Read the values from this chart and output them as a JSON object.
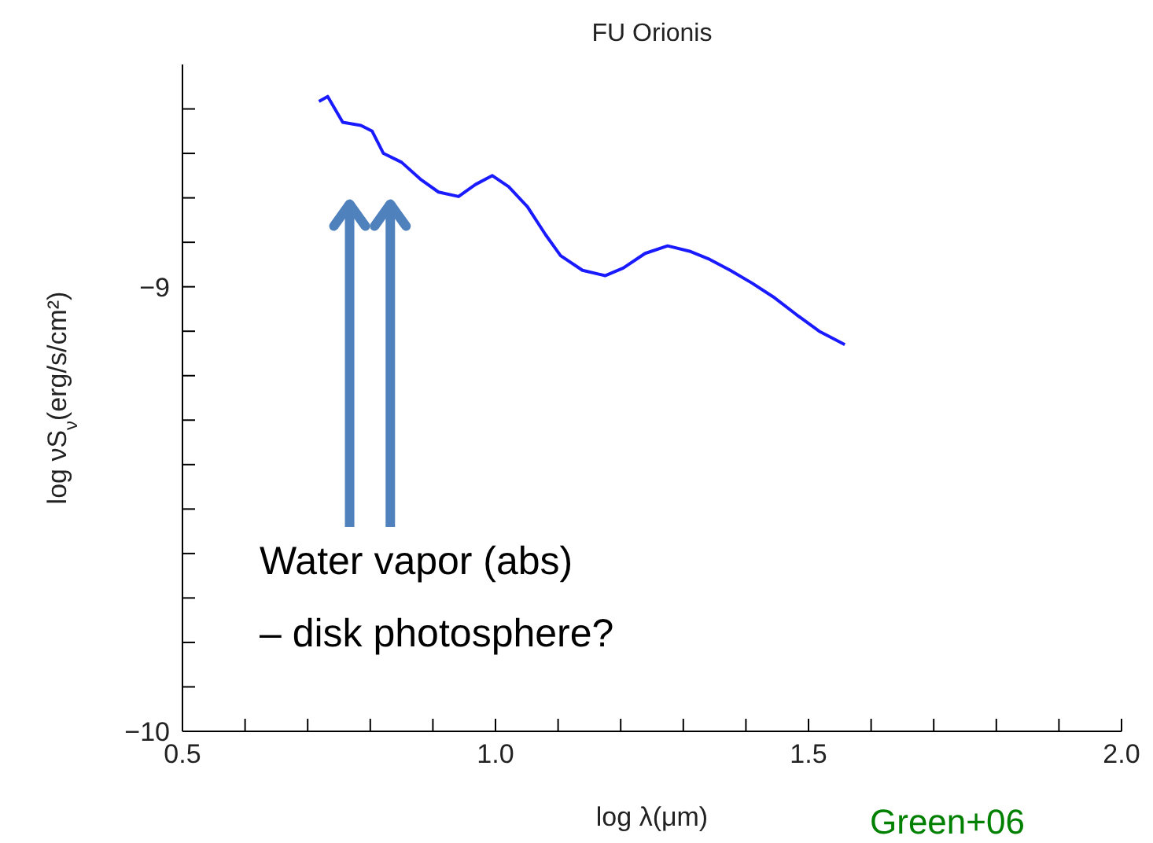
{
  "chart_data": {
    "type": "line",
    "title": "FU Orionis",
    "xlabel": "log λ(μm)",
    "ylabel": "log νS$_{ν}$(erg/s/cm²)",
    "annotations": [
      "Water vapor (abs)\n– disk photosphere?",
      "Green+06"
    ],
    "xlim": [
      0.5,
      2.0
    ],
    "ylim": [
      -10,
      -8.5
    ],
    "xticks": [
      {
        "value": 0.5,
        "label": "0.5"
      },
      {
        "value": 0.6,
        "label": null
      },
      {
        "value": 0.7,
        "label": null
      },
      {
        "value": 0.8,
        "label": null
      },
      {
        "value": 0.9,
        "label": null
      },
      {
        "value": 1.0,
        "label": "1.0"
      },
      {
        "value": 1.1,
        "label": null
      },
      {
        "value": 1.2,
        "label": null
      },
      {
        "value": 1.3,
        "label": null
      },
      {
        "value": 1.4,
        "label": null
      },
      {
        "value": 1.5,
        "label": "1.5"
      },
      {
        "value": 1.6,
        "label": null
      },
      {
        "value": 1.7,
        "label": null
      },
      {
        "value": 1.8,
        "label": null
      },
      {
        "value": 1.9,
        "label": null
      },
      {
        "value": 2.0,
        "label": "2.0"
      }
    ],
    "yticks": [
      -10,
      {
        "value": -9.9,
        "label": null
      },
      {
        "value": -9.8,
        "label": null
      },
      {
        "value": -9.7,
        "label": null
      },
      {
        "value": -9.6,
        "label": null
      },
      {
        "value": -9.5,
        "label": null
      },
      {
        "value": -9.4,
        "label": null
      },
      {
        "value": -9.3,
        "label": null
      },
      {
        "value": -9.2,
        "label": null
      },
      {
        "value": -9.1,
        "label": null
      },
      -9,
      {
        "value": -8.9,
        "label": null
      },
      {
        "value": -8.8,
        "label": null
      },
      {
        "value": -8.7,
        "label": null
      },
      {
        "value": -8.6,
        "label": null
      }
    ],
    "marker": "none",
    "legend": false,
    "grid": false,
    "series": [
      {
        "color": "#1a1aff",
        "x": [
          0.718,
          0.732,
          0.756,
          0.785,
          0.803,
          0.821,
          0.85,
          0.88,
          0.909,
          0.941,
          0.968,
          0.995,
          1.021,
          1.051,
          1.08,
          1.104,
          1.139,
          1.175,
          1.204,
          1.239,
          1.275,
          1.31,
          1.34,
          1.375,
          1.41,
          1.446,
          1.481,
          1.517,
          1.54,
          1.558
        ],
        "values": [
          -8.583,
          -8.572,
          -8.63,
          -8.637,
          -8.65,
          -8.7,
          -8.72,
          -8.758,
          -8.787,
          -8.797,
          -8.77,
          -8.75,
          -8.775,
          -8.82,
          -8.883,
          -8.93,
          -8.963,
          -8.975,
          -8.958,
          -8.925,
          -8.908,
          -8.92,
          -8.937,
          -8.963,
          -8.992,
          -9.025,
          -9.063,
          -9.1,
          -9.117,
          -9.13
        ]
      }
    ]
  }
}
